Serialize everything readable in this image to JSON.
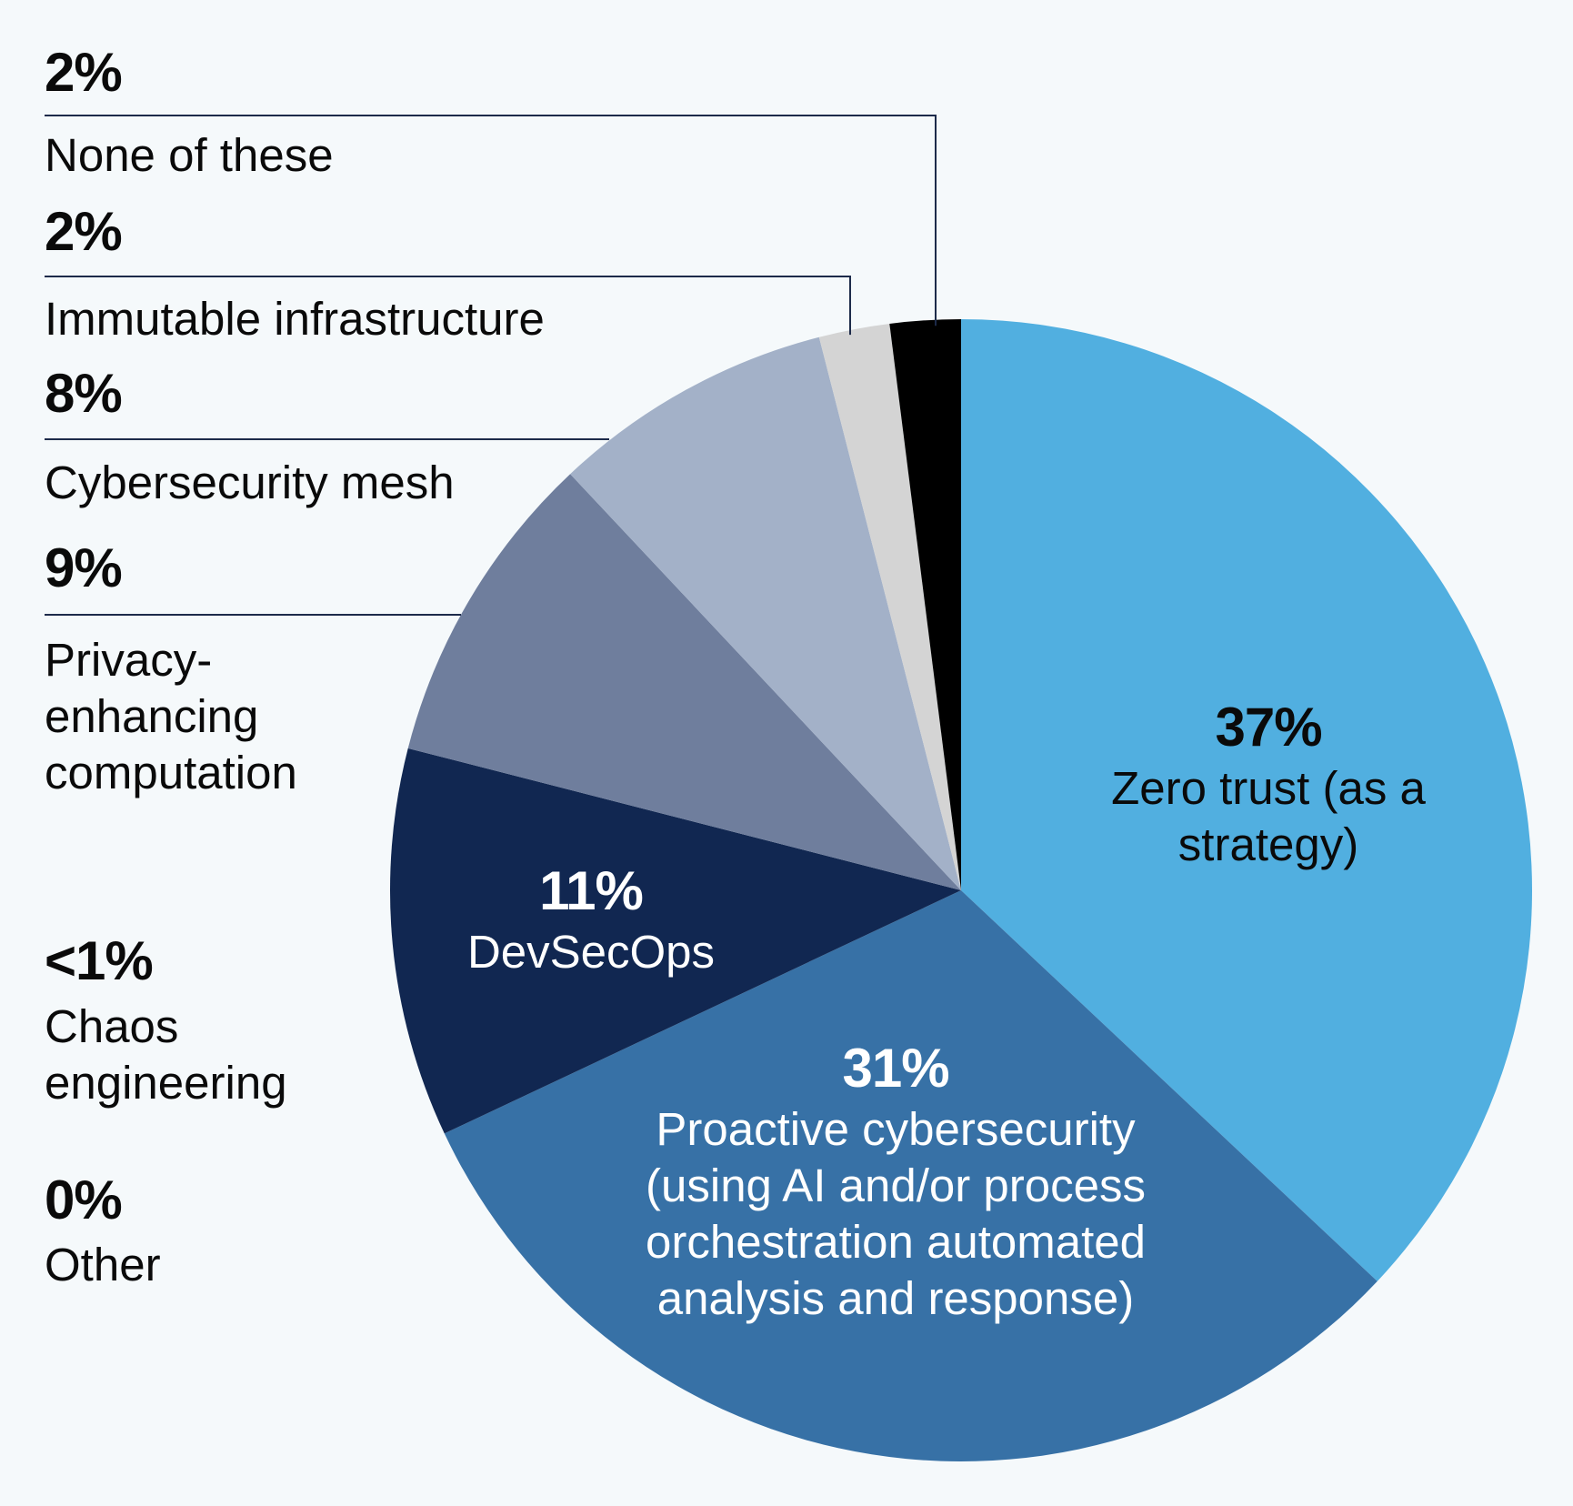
{
  "colors": {
    "background": "#f5f9fb",
    "leader": "#1d2b4a"
  },
  "chart_data": {
    "type": "pie",
    "title": "",
    "unit": "%",
    "start_angle_deg": 0,
    "direction": "clockwise",
    "slices": [
      {
        "label": "Zero trust (as a\nstrategy)",
        "value": 37,
        "display": "37%",
        "color": "#51afe0",
        "placement": "inside",
        "text_color": "#0a0a0a"
      },
      {
        "label": "Proactive cybersecurity\n(using AI and/or process\norchestration automated\nanalysis and response)",
        "value": 31,
        "display": "31%",
        "color": "#3771a6",
        "placement": "inside",
        "text_color": "#ffffff"
      },
      {
        "label": "DevSecOps",
        "value": 11,
        "display": "11%",
        "color": "#112751",
        "placement": "inside",
        "text_color": "#ffffff"
      },
      {
        "label": "Privacy-\nenhancing\ncomputation",
        "value": 9,
        "display": "9%",
        "color": "#6f7e9d",
        "placement": "outside-left"
      },
      {
        "label": "Cybersecurity mesh",
        "value": 8,
        "display": "8%",
        "color": "#a3b1c8",
        "placement": "outside-left"
      },
      {
        "label": "Immutable infrastructure",
        "value": 2,
        "display": "2%",
        "color": "#d4d4d4",
        "placement": "outside-left"
      },
      {
        "label": "None of these",
        "value": 2,
        "display": "2%",
        "color": "#000000",
        "placement": "outside-left"
      },
      {
        "label": "Chaos\nengineering",
        "value": 0.5,
        "display": "<1%",
        "color": null,
        "placement": "outside-left"
      },
      {
        "label": "Other",
        "value": 0,
        "display": "0%",
        "color": null,
        "placement": "outside-left"
      }
    ]
  }
}
